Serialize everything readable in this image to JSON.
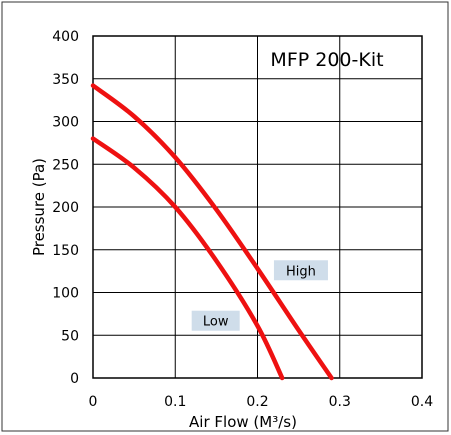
{
  "chart_data": {
    "type": "line",
    "title": "MFP 200-Kit",
    "xlabel": "Air Flow (M³/s)",
    "ylabel": "Pressure (Pa)",
    "xlim": [
      0,
      0.4
    ],
    "ylim": [
      0,
      400
    ],
    "xticks": [
      "0",
      "0.1",
      "0.2",
      "0.3",
      "0.4"
    ],
    "yticks": [
      "0",
      "50",
      "100",
      "150",
      "200",
      "250",
      "300",
      "350",
      "400"
    ],
    "grid": true,
    "series": [
      {
        "name": "High",
        "color": "#ee1111",
        "x": [
          0,
          0.05,
          0.1,
          0.15,
          0.2,
          0.25,
          0.29
        ],
        "y": [
          342,
          306,
          258,
          197,
          128,
          56,
          0
        ]
      },
      {
        "name": "Low",
        "color": "#ee1111",
        "x": [
          0,
          0.05,
          0.1,
          0.15,
          0.2,
          0.23
        ],
        "y": [
          280,
          246,
          200,
          137,
          61,
          0
        ]
      }
    ],
    "annotations": [
      {
        "text": "High",
        "background": "#cfddea"
      },
      {
        "text": "Low",
        "background": "#cfddea"
      }
    ]
  }
}
